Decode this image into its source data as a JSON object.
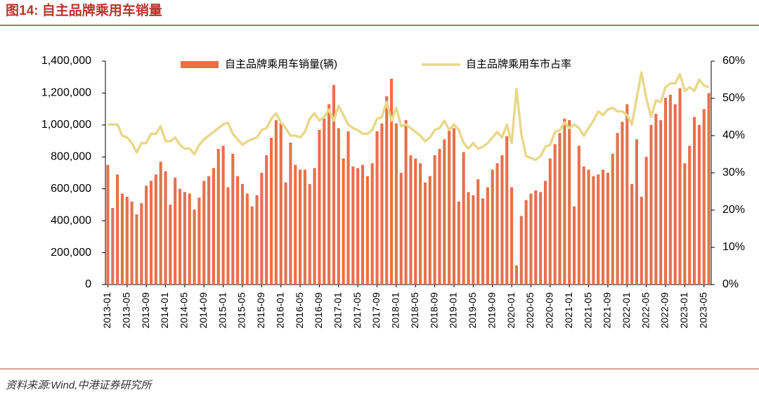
{
  "chart_data": {
    "type": "bar-line",
    "title": "图14:  自主品牌乘用车销量",
    "source": "资料来源:Wind,中港证券研究所",
    "categories": [
      "2013-01",
      null,
      null,
      null,
      "2013-05",
      null,
      null,
      null,
      "2013-09",
      null,
      null,
      null,
      "2014-01",
      null,
      null,
      null,
      "2014-05",
      null,
      null,
      null,
      "2014-09",
      null,
      null,
      null,
      "2015-01",
      null,
      null,
      null,
      "2015-05",
      null,
      null,
      null,
      "2015-09",
      null,
      null,
      null,
      "2016-01",
      null,
      null,
      null,
      "2016-05",
      null,
      null,
      null,
      "2016-09",
      null,
      null,
      null,
      "2017-01",
      null,
      null,
      null,
      "2017-05",
      null,
      null,
      null,
      "2017-09",
      null,
      null,
      null,
      "2018-01",
      null,
      null,
      null,
      "2018-05",
      null,
      null,
      null,
      "2018-09",
      null,
      null,
      null,
      "2019-01",
      null,
      null,
      null,
      "2019-05",
      null,
      null,
      null,
      "2019-09",
      null,
      null,
      null,
      "2020-01",
      null,
      null,
      null,
      "2020-05",
      null,
      null,
      null,
      "2020-09",
      null,
      null,
      null,
      "2021-01",
      null,
      null,
      null,
      "2021-05",
      null,
      null,
      null,
      "2021-09",
      null,
      null,
      null,
      "2022-01",
      null,
      null,
      null,
      "2022-05",
      null,
      null,
      null,
      "2022-09",
      null,
      null,
      null,
      "2023-01",
      null,
      null,
      null,
      "2023-05",
      null
    ],
    "series": [
      {
        "name": "自主品牌乘用车销量(辆)",
        "color": "#e8704a",
        "axis": "y",
        "values": [
          750000,
          480000,
          690000,
          570000,
          550000,
          520000,
          440000,
          510000,
          620000,
          650000,
          690000,
          770000,
          710000,
          500000,
          670000,
          600000,
          580000,
          570000,
          470000,
          545000,
          650000,
          680000,
          730000,
          850000,
          870000,
          610000,
          820000,
          680000,
          630000,
          570000,
          490000,
          560000,
          700000,
          810000,
          920000,
          1030000,
          1010000,
          640000,
          890000,
          750000,
          720000,
          720000,
          630000,
          730000,
          970000,
          1040000,
          1130000,
          1250000,
          980000,
          790000,
          960000,
          740000,
          730000,
          750000,
          680000,
          760000,
          960000,
          1010000,
          1180000,
          1290000,
          1010000,
          700000,
          1030000,
          810000,
          790000,
          760000,
          640000,
          680000,
          810000,
          850000,
          910000,
          980000,
          980000,
          520000,
          830000,
          580000,
          560000,
          660000,
          540000,
          610000,
          720000,
          760000,
          810000,
          930000,
          610000,
          120000,
          430000,
          530000,
          570000,
          590000,
          580000,
          650000,
          790000,
          880000,
          950000,
          1040000,
          1030000,
          490000,
          870000,
          740000,
          720000,
          680000,
          690000,
          720000,
          700000,
          820000,
          950000,
          1020000,
          1130000,
          630000,
          910000,
          550000,
          800000,
          1000000,
          1070000,
          1030000,
          1170000,
          1190000,
          1130000,
          1230000,
          760000,
          870000,
          1050000,
          1000000,
          1100000,
          1200000
        ]
      },
      {
        "name": "自主品牌乘用车市占率",
        "color": "#e8d88a",
        "axis": "y2",
        "values": [
          43,
          43,
          43,
          40,
          39.5,
          38,
          35.5,
          38,
          38,
          40.5,
          40.5,
          42.5,
          38.5,
          38.5,
          39.5,
          37.5,
          36.5,
          36.5,
          35,
          37.5,
          39,
          40,
          41,
          42,
          43,
          43.5,
          40.5,
          39,
          37.5,
          38.5,
          39,
          39.5,
          41.5,
          42,
          44.5,
          46,
          43.5,
          42,
          40,
          40,
          39.5,
          41,
          44.5,
          46,
          44,
          45,
          47,
          44,
          48,
          45.5,
          43,
          42,
          41.5,
          40.5,
          40.5,
          41.5,
          44.5,
          45,
          49,
          44,
          47.5,
          42.5,
          43,
          42,
          41,
          40,
          38.5,
          39.5,
          41.5,
          42,
          44,
          41.5,
          43,
          41.5,
          38,
          36.5,
          38,
          36.5,
          37,
          38,
          39.5,
          41,
          39.5,
          43,
          38,
          52.5,
          40.5,
          34.5,
          34,
          33.5,
          34.5,
          37,
          37.5,
          41,
          41.5,
          43.5,
          42,
          43,
          42,
          40,
          42,
          44,
          46.5,
          45.5,
          47,
          47.5,
          46.5,
          46.5,
          45.5,
          43,
          50,
          57,
          50,
          45,
          49.5,
          49,
          53,
          54,
          54,
          56.5,
          52,
          53,
          52,
          55,
          53.5,
          53
        ]
      }
    ],
    "ylim": [
      0,
      1400000
    ],
    "yticks": [
      0,
      {
        "value": 200000,
        "label": "200,000"
      },
      {
        "value": 400000,
        "label": "400,000"
      },
      {
        "value": 600000,
        "label": "600,000"
      },
      {
        "value": 800000,
        "label": "800,000"
      },
      {
        "value": 1000000,
        "label": "1,000,000"
      },
      {
        "value": 1200000,
        "label": "1,200,000"
      },
      {
        "value": 1400000,
        "label": "1,400,000"
      }
    ],
    "y2lim": [
      0,
      60
    ],
    "y2ticks": [
      {
        "value": 0,
        "label": "0%"
      },
      {
        "value": 10,
        "label": "10%"
      },
      {
        "value": 20,
        "label": "20%"
      },
      {
        "value": 30,
        "label": "30%"
      },
      {
        "value": 40,
        "label": "40%"
      },
      {
        "value": 50,
        "label": "50%"
      },
      {
        "value": 60,
        "label": "60%"
      }
    ]
  }
}
